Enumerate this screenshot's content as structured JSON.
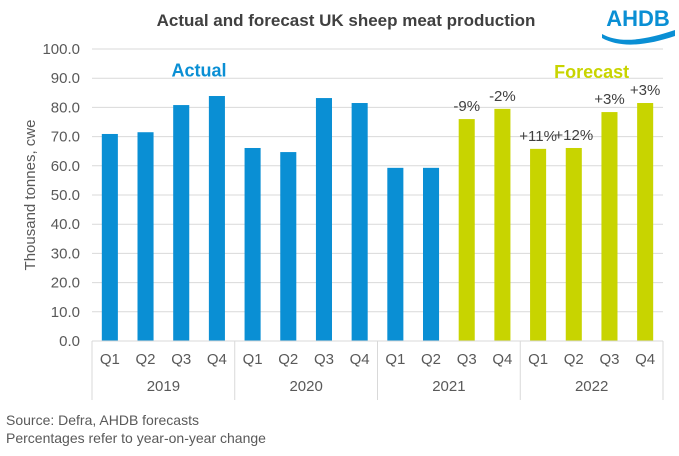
{
  "logo": {
    "text": "AHDB",
    "color": "#0a8fd4"
  },
  "notes": [
    "Source:  Defra, AHDB forecasts",
    "Percentages refer to year-on-year  change"
  ],
  "chart_data": {
    "type": "bar",
    "title": "Actual and forecast UK sheep meat production",
    "xlabel": "",
    "ylabel": "Thousand  tonnes,  cwe",
    "ylim": [
      0,
      100
    ],
    "yticks": [
      0,
      10,
      20,
      30,
      40,
      50,
      60,
      70,
      80,
      90,
      100
    ],
    "ytick_format": 1,
    "grid": true,
    "legend": "none",
    "categories": [
      "Q1",
      "Q2",
      "Q3",
      "Q4",
      "Q1",
      "Q2",
      "Q3",
      "Q4",
      "Q1",
      "Q2",
      "Q3",
      "Q4",
      "Q1",
      "Q2",
      "Q3",
      "Q4"
    ],
    "groups": [
      {
        "label": "2019",
        "count": 4
      },
      {
        "label": "2020",
        "count": 4
      },
      {
        "label": "2021",
        "count": 4
      },
      {
        "label": "2022",
        "count": 4
      }
    ],
    "values": [
      70.9,
      71.5,
      80.8,
      83.9,
      66.1,
      64.7,
      83.2,
      81.5,
      59.3,
      59.3,
      76.0,
      79.5,
      65.8,
      66.1,
      78.4,
      81.5
    ],
    "kinds": [
      "actual",
      "actual",
      "actual",
      "actual",
      "actual",
      "actual",
      "actual",
      "actual",
      "actual",
      "actual",
      "forecast",
      "forecast",
      "forecast",
      "forecast",
      "forecast",
      "forecast"
    ],
    "data_labels": [
      "",
      "",
      "",
      "",
      "",
      "",
      "",
      "",
      "",
      "",
      "-9%",
      "-2%",
      "+11%",
      "+12%",
      "+3%",
      "+3%"
    ],
    "colors": {
      "actual": "#0a8fd4",
      "forecast": "#c8d400"
    },
    "annotations": [
      {
        "text": "Actual",
        "kind": "actual",
        "anchor_index": 2.5,
        "y": 90.5
      },
      {
        "text": "Forecast",
        "kind": "forecast",
        "anchor_index": 13.5,
        "y": 90.0
      }
    ]
  }
}
